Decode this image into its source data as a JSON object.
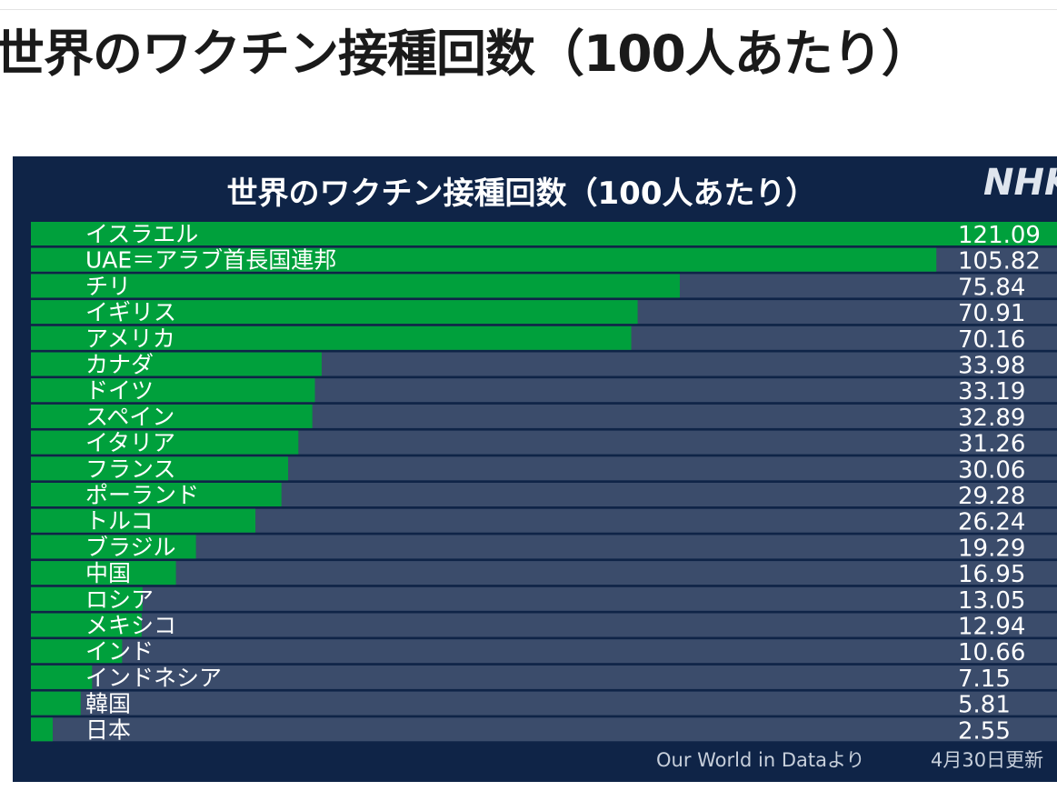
{
  "page": {
    "title": "世界のワクチン接種回数（100人あたり）"
  },
  "panel": {
    "logo": "NHK",
    "source": "Our World in Dataより",
    "date": "4月30日更新"
  },
  "colors": {
    "bar_fill": "#00a03c",
    "track": "#3b4c6b",
    "background": "#0f2447",
    "text": "#ffffff"
  },
  "chart_data": {
    "type": "bar",
    "orientation": "horizontal",
    "title": "世界のワクチン接種回数（100人あたり）",
    "xlim": [
      0,
      121.09
    ],
    "categories": [
      "イスラエル",
      "UAE＝アラブ首長国連邦",
      "チリ",
      "イギリス",
      "アメリカ",
      "カナダ",
      "ドイツ",
      "スペイン",
      "イタリア",
      "フランス",
      "ポーランド",
      "トルコ",
      "ブラジル",
      "中国",
      "ロシア",
      "メキシコ",
      "インド",
      "インドネシア",
      "韓国",
      "日本"
    ],
    "values": [
      121.09,
      105.82,
      75.84,
      70.91,
      70.16,
      33.98,
      33.19,
      32.89,
      31.26,
      30.06,
      29.28,
      26.24,
      19.29,
      16.95,
      13.05,
      12.94,
      10.66,
      7.15,
      5.81,
      2.55
    ],
    "value_labels": [
      "121.09",
      "105.82",
      "75.84",
      "70.91",
      "70.16",
      "33.98",
      "33.19",
      "32.89",
      "31.26",
      "30.06",
      "29.28",
      "26.24",
      "19.29",
      "16.95",
      "13.05",
      "12.94",
      "10.66",
      "7.15",
      "5.81",
      "2.55"
    ]
  }
}
